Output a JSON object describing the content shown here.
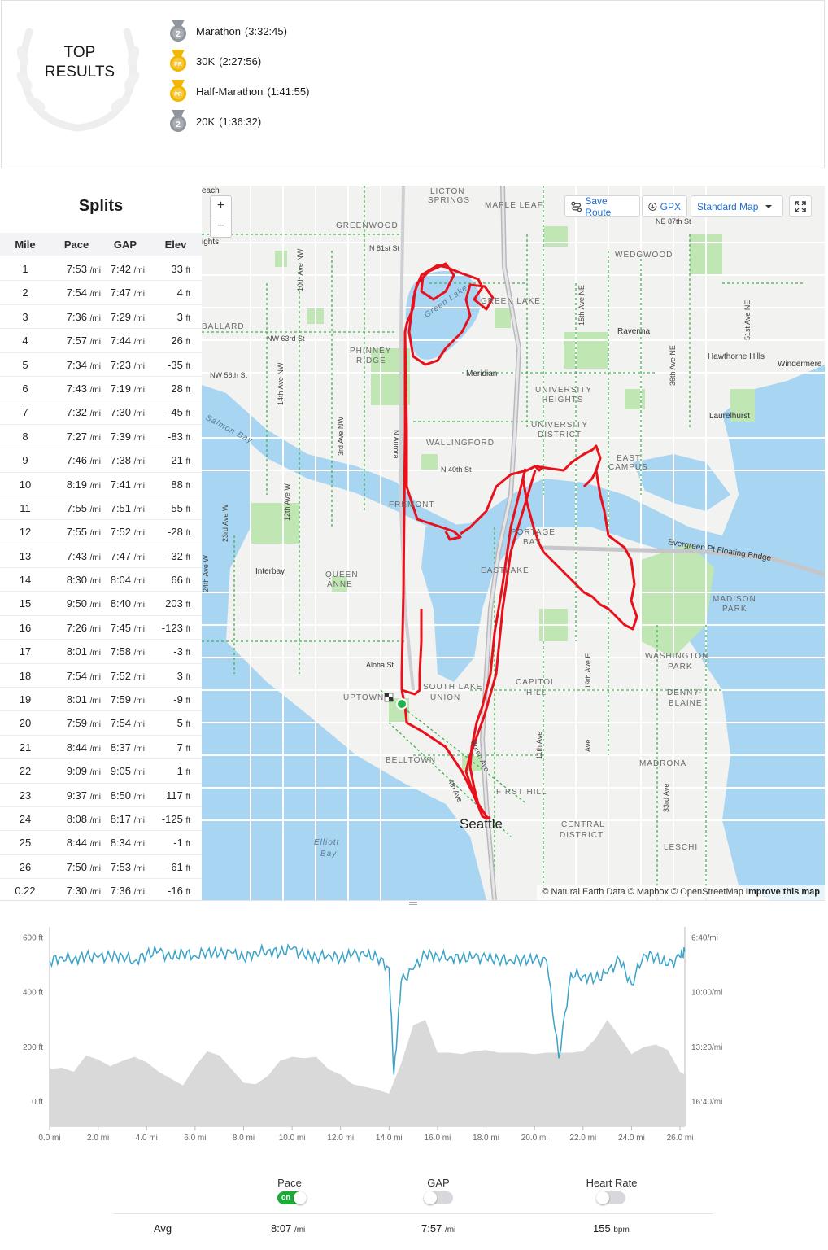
{
  "top_results": {
    "title_line1": "TOP",
    "title_line2": "RESULTS",
    "items": [
      {
        "label": "Marathon",
        "time": "(3:32:45)",
        "medal": "2",
        "medal_color": "#8f959c"
      },
      {
        "label": "30K",
        "time": "(2:27:56)",
        "medal": "PR",
        "medal_color": "#f2b705"
      },
      {
        "label": "Half-Marathon",
        "time": "(1:41:55)",
        "medal": "PR",
        "medal_color": "#f2b705"
      },
      {
        "label": "20K",
        "time": "(1:36:32)",
        "medal": "2",
        "medal_color": "#8f959c"
      }
    ]
  },
  "splits": {
    "title": "Splits",
    "headers": {
      "mile": "Mile",
      "pace": "Pace",
      "gap": "GAP",
      "elev": "Elev"
    },
    "pace_unit": "/mi",
    "elev_unit": "ft",
    "rows": [
      {
        "mile": "1",
        "pace": "7:53",
        "gap": "7:42",
        "elev": "33"
      },
      {
        "mile": "2",
        "pace": "7:54",
        "gap": "7:47",
        "elev": "4"
      },
      {
        "mile": "3",
        "pace": "7:36",
        "gap": "7:29",
        "elev": "3"
      },
      {
        "mile": "4",
        "pace": "7:57",
        "gap": "7:44",
        "elev": "26"
      },
      {
        "mile": "5",
        "pace": "7:34",
        "gap": "7:23",
        "elev": "-35"
      },
      {
        "mile": "6",
        "pace": "7:43",
        "gap": "7:19",
        "elev": "28"
      },
      {
        "mile": "7",
        "pace": "7:32",
        "gap": "7:30",
        "elev": "-45"
      },
      {
        "mile": "8",
        "pace": "7:27",
        "gap": "7:39",
        "elev": "-83"
      },
      {
        "mile": "9",
        "pace": "7:46",
        "gap": "7:38",
        "elev": "21"
      },
      {
        "mile": "10",
        "pace": "8:19",
        "gap": "7:41",
        "elev": "88"
      },
      {
        "mile": "11",
        "pace": "7:55",
        "gap": "7:51",
        "elev": "-55"
      },
      {
        "mile": "12",
        "pace": "7:55",
        "gap": "7:52",
        "elev": "-28"
      },
      {
        "mile": "13",
        "pace": "7:43",
        "gap": "7:47",
        "elev": "-32"
      },
      {
        "mile": "14",
        "pace": "8:30",
        "gap": "8:04",
        "elev": "66"
      },
      {
        "mile": "15",
        "pace": "9:50",
        "gap": "8:40",
        "elev": "203"
      },
      {
        "mile": "16",
        "pace": "7:26",
        "gap": "7:45",
        "elev": "-123"
      },
      {
        "mile": "17",
        "pace": "8:01",
        "gap": "7:58",
        "elev": "-3"
      },
      {
        "mile": "18",
        "pace": "7:54",
        "gap": "7:52",
        "elev": "3"
      },
      {
        "mile": "19",
        "pace": "8:01",
        "gap": "7:59",
        "elev": "-9"
      },
      {
        "mile": "20",
        "pace": "7:59",
        "gap": "7:54",
        "elev": "5"
      },
      {
        "mile": "21",
        "pace": "8:44",
        "gap": "8:37",
        "elev": "7"
      },
      {
        "mile": "22",
        "pace": "9:09",
        "gap": "9:05",
        "elev": "1"
      },
      {
        "mile": "23",
        "pace": "9:37",
        "gap": "8:50",
        "elev": "117"
      },
      {
        "mile": "24",
        "pace": "8:08",
        "gap": "8:17",
        "elev": "-125"
      },
      {
        "mile": "25",
        "pace": "8:44",
        "gap": "8:34",
        "elev": "-1"
      },
      {
        "mile": "26",
        "pace": "7:50",
        "gap": "7:53",
        "elev": "-61"
      },
      {
        "mile": "0.22",
        "pace": "7:30",
        "gap": "7:36",
        "elev": "-16"
      }
    ]
  },
  "map": {
    "zoom_in": "+",
    "zoom_out": "−",
    "save_route": "Save Route",
    "gpx": "GPX",
    "map_style": "Standard Map",
    "route_color": "#e8101a",
    "water_color": "#a8d5f2",
    "park_color": "#bfe6b3",
    "trail_color": "#3cb44b",
    "attribution": "© Natural Earth Data © Mapbox © OpenStreetMap",
    "improve": "Improve this map",
    "labels": {
      "licton": "LICTON",
      "springs": "SPRINGS",
      "maple_leaf": "MAPLE LEAF",
      "greenwood": "GREENWOOD",
      "wedgwood": "WEDGWOOD",
      "ballard": "BALLARD",
      "green_lake": "GREEN LAKE",
      "ravenna": "Ravenna",
      "phinney": "PHINNEY",
      "ridge": "RIDGE",
      "meridian": "Meridian",
      "hawthorne": "Hawthorne Hills",
      "windermere": "Windermere",
      "univ_heights1": "UNIVERSITY",
      "univ_heights2": "HEIGHTS",
      "laurelhurst": "Laurelhurst",
      "univ_district1": "UNIVERSITY",
      "univ_district2": "DISTRICT",
      "wallingford": "WALLINGFORD",
      "east": "EAST",
      "campus": "CAMPUS",
      "fremont": "FREMONT",
      "portage": "PORTAGE",
      "bay": "BAY",
      "evergreen": "Evergreen Pt Floating Bridge",
      "eastlake": "EASTLAKE",
      "interbay": "Interbay",
      "queen": "QUEEN",
      "anne": "ANNE",
      "madison": "MADISON",
      "park": "PARK",
      "washington": "WASHINGTON",
      "wpark": "PARK",
      "aloha": "Aloha St",
      "capitol": "CAPITOL",
      "hill": "HILL",
      "south_lake": "SOUTH LAKE",
      "union": "UNION",
      "uptown": "UPTOWN",
      "denny": "DENNY-",
      "blaine": "BLAINE",
      "belltown": "BELLTOWN",
      "madrona": "MADRONA",
      "first_hill": "FIRST HILL",
      "seattle": "Seattle",
      "central": "CENTRAL",
      "district": "DISTRICT",
      "elliott": "Elliott",
      "elliott_bay": "Bay",
      "leschi": "LESCHI",
      "salmon_bay": "Salmon Bay",
      "green_lake_water": "Green Lake",
      "beach": "each",
      "ights": "ights"
    },
    "streets": {
      "ne87": "NE 87th St",
      "n81": "N 81st St",
      "nw63": "NW 63rd St",
      "nw56": "NW 56th St",
      "n40": "N 40th St",
      "ave10": "10th Ave NW",
      "ave14": "14th Ave NW",
      "ave3": "3rd Ave NW",
      "ave12": "12th Ave W",
      "ave23": "23rd Ave W",
      "ave24": "24th Ave W",
      "ave15ne": "15th Ave NE",
      "ave36": "36th Ave NE",
      "ave51": "51st Ave NE",
      "ave19": "19th Ave E",
      "ave11": "11th Ave",
      "ave33": "33rd Ave",
      "ave_mad": "Ave",
      "boren": "Boren Ave",
      "fourth": "4th Ave",
      "aurora": "N Aurora"
    }
  },
  "elevation_chart": {
    "left_ticks": [
      "600 ft",
      "400 ft",
      "200 ft",
      "0 ft"
    ],
    "right_ticks": [
      "6:40/mi",
      "10:00/mi",
      "13:20/mi",
      "16:40/mi"
    ],
    "x_ticks": [
      "0.0 mi",
      "2.0 mi",
      "4.0 mi",
      "6.0 mi",
      "8.0 mi",
      "10.0 mi",
      "12.0 mi",
      "14.0 mi",
      "16.0 mi",
      "18.0 mi",
      "20.0 mi",
      "22.0 mi",
      "24.0 mi",
      "26.0 mi"
    ],
    "pace_color": "#3ca3c8",
    "elevation_fill": "#d9d9d9"
  },
  "chart_data": {
    "type": "area",
    "xlabel": "",
    "ylabel": "",
    "xlim": [
      0,
      26.2
    ],
    "ylim": [
      0,
      640
    ],
    "series": [
      {
        "x": [
          0,
          0.5,
          1,
          1.5,
          2,
          2.5,
          3,
          3.5,
          4,
          4.5,
          5,
          5.5,
          6,
          6.5,
          7,
          7.5,
          8,
          8.5,
          9,
          9.5,
          10,
          10.5,
          11,
          11.5,
          12,
          12.5,
          13,
          13.5,
          14,
          14.5,
          15,
          15.5,
          16,
          16.5,
          17,
          17.5,
          18,
          18.5,
          19,
          19.5,
          20,
          20.5,
          21,
          21.5,
          22,
          22.5,
          23,
          23.5,
          24,
          24.5,
          25,
          25.5,
          26,
          26.2
        ],
        "values": [
          120,
          125,
          110,
          170,
          155,
          130,
          150,
          165,
          145,
          110,
          85,
          60,
          130,
          185,
          170,
          120,
          70,
          65,
          95,
          150,
          165,
          160,
          165,
          120,
          100,
          65,
          55,
          45,
          30,
          140,
          280,
          300,
          180,
          180,
          175,
          185,
          190,
          180,
          180,
          180,
          175,
          180,
          180,
          180,
          185,
          230,
          300,
          240,
          175,
          200,
          210,
          190,
          110,
          100
        ]
      },
      {
        "x": [
          0,
          0.5,
          1,
          1.5,
          2,
          2.5,
          3,
          3.5,
          4,
          4.5,
          5,
          5.5,
          6,
          6.5,
          7,
          7.5,
          8,
          8.5,
          9,
          9.5,
          10,
          10.5,
          11,
          11.5,
          12,
          12.5,
          13,
          13.5,
          14,
          14.2,
          14.5,
          15,
          15.5,
          16,
          16.5,
          17,
          17.5,
          18,
          18.5,
          19,
          19.5,
          20,
          20.5,
          21,
          21.5,
          22,
          22.5,
          23,
          23.5,
          24,
          24.5,
          25,
          25.5,
          26,
          26.2
        ],
        "values": [
          "8:05",
          "7:50",
          "7:58",
          "7:48",
          "7:52",
          "7:50",
          "7:45",
          "8:05",
          "7:40",
          "7:30",
          "7:55",
          "7:35",
          "7:45",
          "7:30",
          "7:40",
          "7:35",
          "7:55",
          "7:32",
          "7:25",
          "7:35",
          "7:20",
          "7:45",
          "7:50",
          "7:40",
          "7:55",
          "7:40",
          "7:45",
          "7:50",
          "8:30",
          "15:00",
          "9:20",
          "8:35",
          "7:40",
          "7:45",
          "7:50",
          "7:55",
          "7:52",
          "7:55",
          "7:58",
          "8:00",
          "7:58",
          "8:02",
          "8:05",
          "14:00",
          "8:50",
          "9:00",
          "9:10",
          "8:50",
          "8:00",
          "9:30",
          "7:40",
          "7:50",
          "8:20",
          "7:50",
          "7:30"
        ]
      }
    ]
  },
  "toggles": [
    {
      "label": "Pace",
      "state": "on",
      "on_text": "on"
    },
    {
      "label": "GAP",
      "state": "off"
    },
    {
      "label": "Heart Rate",
      "state": "off"
    }
  ],
  "averages": {
    "label": "Avg",
    "pace": "8:07",
    "pace_unit": "/mi",
    "gap": "7:57",
    "gap_unit": "/mi",
    "hr": "155",
    "hr_unit": "bpm"
  }
}
